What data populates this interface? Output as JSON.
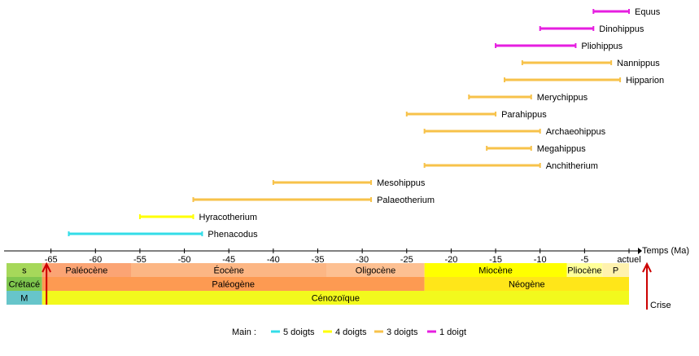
{
  "chart_data": {
    "type": "timeline",
    "xlim": [
      -70,
      0
    ],
    "unit_ticks": [
      -65,
      -60,
      -55,
      -50,
      -45,
      -40,
      -35,
      -30,
      -25,
      -20,
      -15,
      -10,
      -5
    ],
    "tick_labels": [
      "-65",
      "-60",
      "-55",
      "-50",
      "-45",
      "-40",
      "-35",
      "-30",
      "-25",
      "-20",
      "-15",
      "-10",
      "-5"
    ],
    "present_label": "actuel",
    "axis_label": "Temps (Ma)",
    "series": [
      {
        "name": "Equus",
        "start": -4,
        "end": 0,
        "digits": "1 doigt"
      },
      {
        "name": "Dinohippus",
        "start": -10,
        "end": -4,
        "digits": "1 doigt"
      },
      {
        "name": "Pliohippus",
        "start": -15,
        "end": -6,
        "digits": "1 doigt"
      },
      {
        "name": "Nannippus",
        "start": -12,
        "end": -2,
        "digits": "3 doigts"
      },
      {
        "name": "Hipparion",
        "start": -14,
        "end": -1,
        "digits": "3 doigts"
      },
      {
        "name": "Merychippus",
        "start": -18,
        "end": -11,
        "digits": "3 doigts"
      },
      {
        "name": "Parahippus",
        "start": -25,
        "end": -15,
        "digits": "3 doigts"
      },
      {
        "name": "Archaeohippus",
        "start": -23,
        "end": -10,
        "digits": "3 doigts"
      },
      {
        "name": "Megahippus",
        "start": -16,
        "end": -11,
        "digits": "3 doigts"
      },
      {
        "name": "Anchitherium",
        "start": -23,
        "end": -10,
        "digits": "3 doigts"
      },
      {
        "name": "Mesohippus",
        "start": -40,
        "end": -29,
        "digits": "3 doigts"
      },
      {
        "name": "Palaeotherium",
        "start": -49,
        "end": -29,
        "digits": "3 doigts"
      },
      {
        "name": "Hyracotherium",
        "start": -55,
        "end": -49,
        "digits": "4 doigts"
      },
      {
        "name": "Phenacodus",
        "start": -63,
        "end": -48,
        "digits": "5 doigts"
      }
    ],
    "periods": {
      "epochs": [
        {
          "label": "s",
          "start": -70,
          "end": -66,
          "color": "#a6d85a"
        },
        {
          "label": "Paléocène",
          "start": -66,
          "end": -56,
          "color": "#fba474"
        },
        {
          "label": "Éocène",
          "start": -56,
          "end": -34,
          "color": "#fcb684"
        },
        {
          "label": "Oligocène",
          "start": -34,
          "end": -23,
          "color": "#fdc092"
        },
        {
          "label": "Miocène",
          "start": -23,
          "end": -7,
          "color": "#ffff00"
        },
        {
          "label": "Pliocène",
          "start": -7,
          "end": -3,
          "color": "#ffff99"
        },
        {
          "label": "P",
          "start": -3,
          "end": 0,
          "color": "#fff2ae"
        }
      ],
      "periods": [
        {
          "label": "Crétacé",
          "start": -70,
          "end": -66,
          "color": "#7fc64e"
        },
        {
          "label": "Paléogène",
          "start": -66,
          "end": -23,
          "color": "#fd9a52"
        },
        {
          "label": "Néogène",
          "start": -23,
          "end": 0,
          "color": "#ffe619"
        }
      ],
      "eras": [
        {
          "label": "M",
          "start": -70,
          "end": -66,
          "color": "#67c5ca"
        },
        {
          "label": "Cénozoïque",
          "start": -66,
          "end": 0,
          "color": "#f2f91d"
        }
      ]
    },
    "crisis": {
      "label": "Crise",
      "at": -65.5
    },
    "legend": {
      "title": "Main :",
      "items": [
        {
          "label": "5 doigts",
          "color": "#33dde8"
        },
        {
          "label": "4 doigts",
          "color": "#ffff00"
        },
        {
          "label": "3 doigts",
          "color": "#f7c24a"
        },
        {
          "label": "1 doigt",
          "color": "#e61ee0"
        }
      ]
    },
    "colors": {
      "crisis": "#cc0000",
      "axis": "#000000",
      "text": "#000000"
    }
  }
}
